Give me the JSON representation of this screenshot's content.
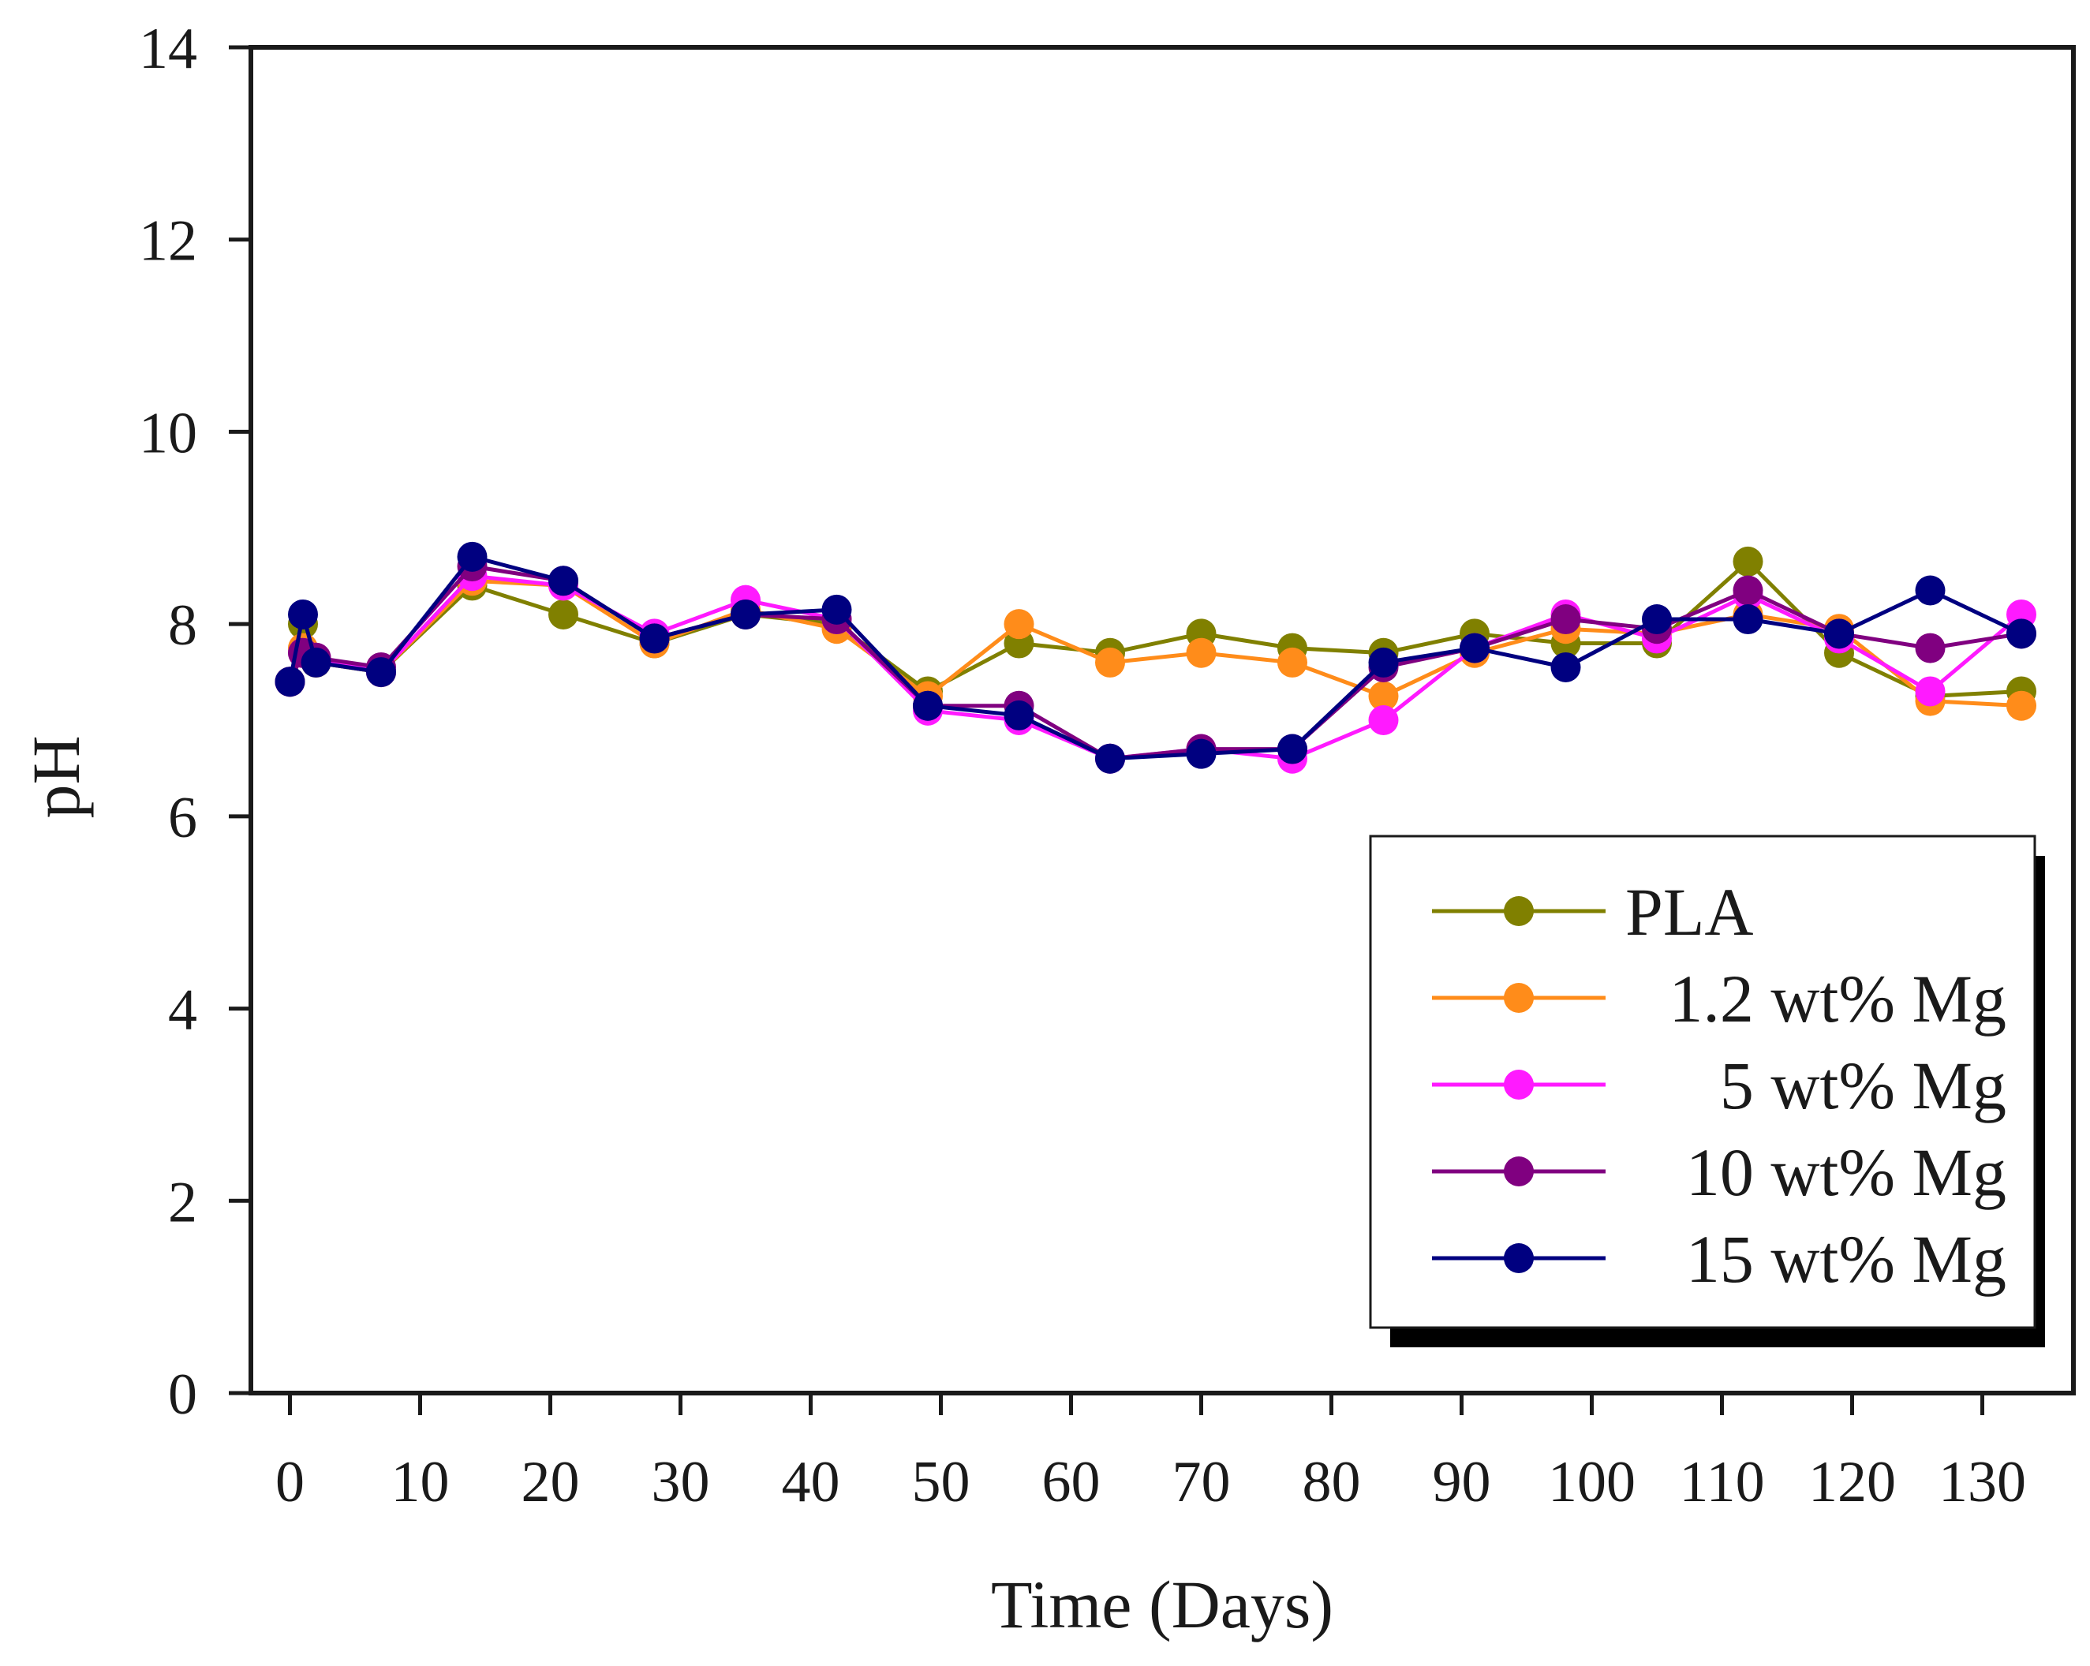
{
  "chart_data": {
    "type": "line",
    "title": "",
    "xlabel": "Time (Days)",
    "ylabel": "pH",
    "xlim": [
      -3,
      137
    ],
    "ylim": [
      0,
      14
    ],
    "xticks": [
      0,
      10,
      20,
      30,
      40,
      50,
      60,
      70,
      80,
      90,
      100,
      110,
      120,
      130
    ],
    "yticks": [
      0,
      2,
      4,
      6,
      8,
      10,
      12,
      14
    ],
    "grid": false,
    "legend_position": "bottom-right",
    "series": [
      {
        "name": "PLA",
        "color": "#808000",
        "x": [
          0,
          1,
          2,
          7,
          14,
          21,
          28,
          35,
          42,
          49,
          56,
          63,
          70,
          77,
          84,
          91,
          98,
          105,
          112,
          119,
          126,
          133
        ],
        "y": [
          7.4,
          8.0,
          7.6,
          7.5,
          8.4,
          8.1,
          7.8,
          8.1,
          8.0,
          7.3,
          7.8,
          7.7,
          7.9,
          7.75,
          7.7,
          7.9,
          7.8,
          7.8,
          8.65,
          7.7,
          7.25,
          7.3
        ]
      },
      {
        "name": "1.2 wt% Mg",
        "color": "#ff8c1a",
        "x": [
          0,
          1,
          2,
          7,
          14,
          21,
          28,
          35,
          42,
          49,
          56,
          63,
          70,
          77,
          84,
          91,
          98,
          105,
          112,
          119,
          126,
          133
        ],
        "y": [
          7.4,
          7.75,
          7.6,
          7.5,
          8.45,
          8.4,
          7.8,
          8.15,
          7.95,
          7.25,
          8.0,
          7.6,
          7.7,
          7.6,
          7.25,
          7.7,
          7.95,
          7.9,
          8.1,
          7.95,
          7.2,
          7.15
        ]
      },
      {
        "name": "5 wt% Mg",
        "color": "#ff1aff",
        "x": [
          0,
          1,
          2,
          7,
          14,
          21,
          28,
          35,
          42,
          49,
          56,
          63,
          70,
          77,
          84,
          91,
          98,
          105,
          112,
          119,
          126,
          133
        ],
        "y": [
          7.4,
          7.7,
          7.65,
          7.5,
          8.5,
          8.4,
          7.9,
          8.25,
          8.05,
          7.1,
          7.0,
          6.6,
          6.7,
          6.6,
          7.0,
          7.75,
          8.1,
          7.85,
          8.3,
          7.85,
          7.3,
          8.1
        ]
      },
      {
        "name": "10 wt% Mg",
        "color": "#800080",
        "x": [
          0,
          1,
          2,
          7,
          14,
          21,
          28,
          35,
          42,
          49,
          56,
          63,
          70,
          77,
          84,
          91,
          98,
          105,
          112,
          119,
          126,
          133
        ],
        "y": [
          7.4,
          7.7,
          7.65,
          7.55,
          8.6,
          8.45,
          7.85,
          8.1,
          8.05,
          7.15,
          7.15,
          6.6,
          6.7,
          6.7,
          7.55,
          7.75,
          8.05,
          7.95,
          8.35,
          7.9,
          7.75,
          7.9
        ]
      },
      {
        "name": "15 wt% Mg",
        "color": "#000080",
        "x": [
          0,
          1,
          2,
          7,
          14,
          21,
          28,
          35,
          42,
          49,
          56,
          63,
          70,
          77,
          84,
          91,
          98,
          105,
          112,
          119,
          126,
          133
        ],
        "y": [
          7.4,
          8.1,
          7.6,
          7.5,
          8.7,
          8.45,
          7.85,
          8.1,
          8.15,
          7.15,
          7.05,
          6.6,
          6.65,
          6.7,
          7.6,
          7.75,
          7.55,
          8.05,
          8.05,
          7.9,
          8.35,
          7.9
        ]
      }
    ]
  }
}
